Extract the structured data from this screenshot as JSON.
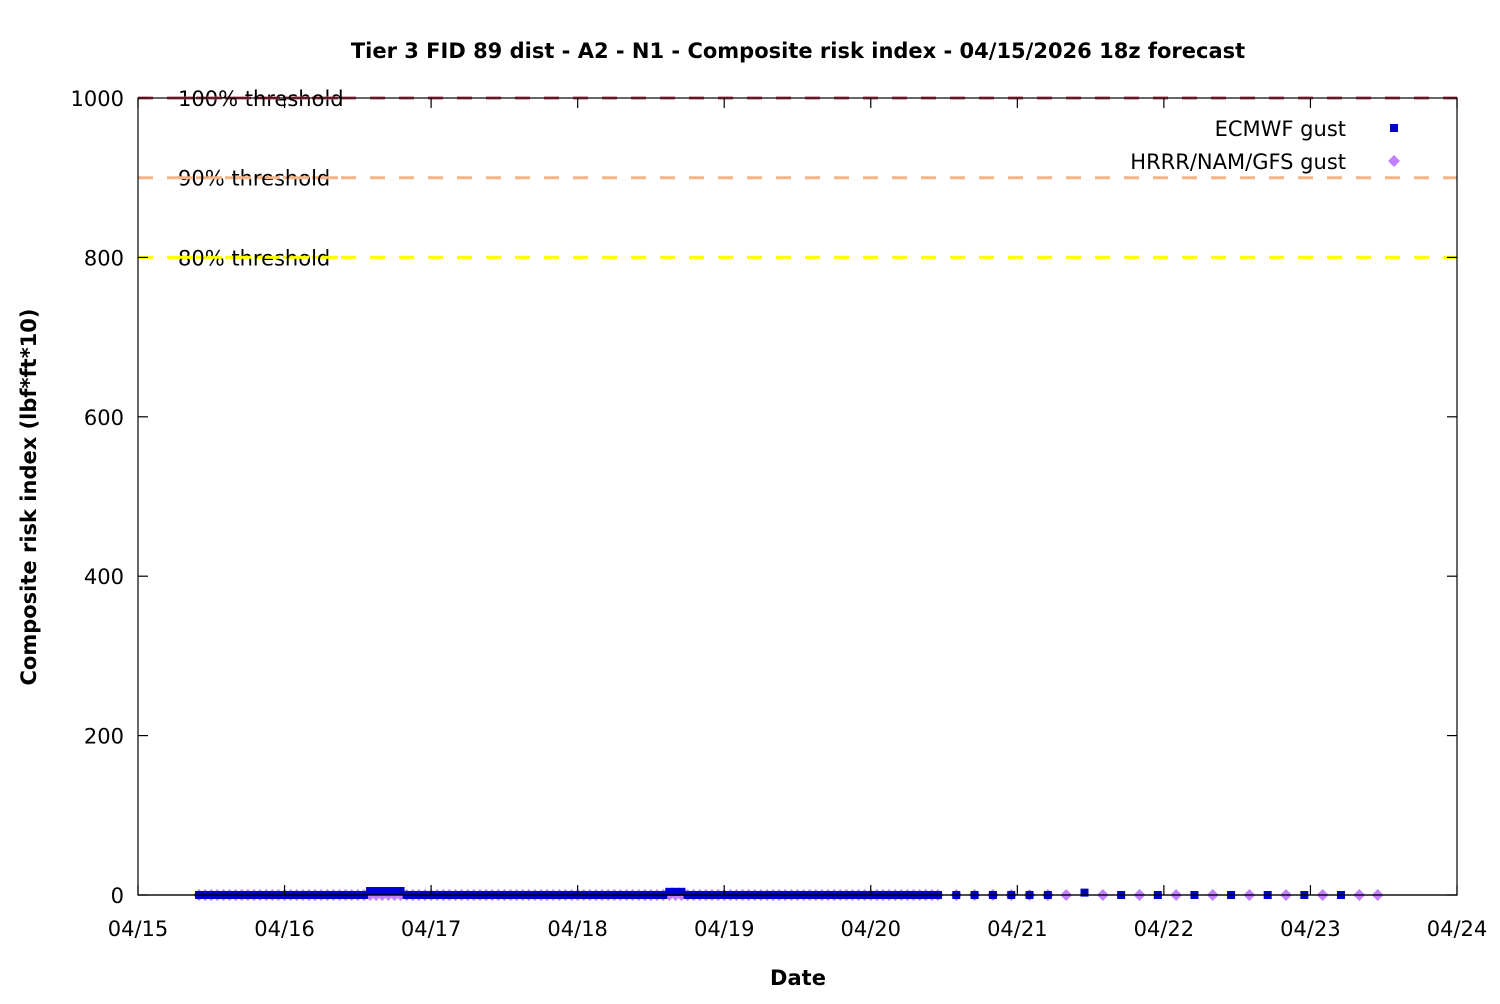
{
  "chart_data": {
    "type": "scatter",
    "title": "Tier 3 FID 89 dist - A2 - N1 - Composite risk index - 04/15/2026 18z forecast",
    "xlabel": "Date",
    "ylabel": "Composite risk index (lbf*ft*10)",
    "x_ticks": [
      "04/15",
      "04/16",
      "04/17",
      "04/18",
      "04/19",
      "04/20",
      "04/21",
      "04/22",
      "04/23",
      "04/24"
    ],
    "xlim": [
      "04/15 00z",
      "04/24 00z"
    ],
    "y_ticks": [
      0,
      200,
      400,
      600,
      800,
      1000
    ],
    "ylim": [
      0,
      1000
    ],
    "grid": false,
    "legend_placement": "top-right",
    "thresholds": [
      {
        "label": "100% threshold",
        "value": 1000,
        "color": "#c8506a"
      },
      {
        "label": "90% threshold",
        "value": 900,
        "color": "#f4b487"
      },
      {
        "label": "80% threshold",
        "value": 800,
        "color": "#ffff00"
      }
    ],
    "series": [
      {
        "name": "ECMWF gust",
        "marker": "square",
        "color": "#0000cc",
        "x": [
          "04/15 10z",
          "04/15 11z",
          "04/15 12z",
          "04/15 13z",
          "04/15 14z",
          "04/15 15z",
          "04/15 16z",
          "04/15 17z",
          "04/15 18z",
          "04/15 19z",
          "04/15 20z",
          "04/15 21z",
          "04/15 22z",
          "04/15 23z",
          "04/16 00z",
          "04/16 01z",
          "04/16 02z",
          "04/16 03z",
          "04/16 04z",
          "04/16 05z",
          "04/16 06z",
          "04/16 07z",
          "04/16 08z",
          "04/16 09z",
          "04/16 10z",
          "04/16 11z",
          "04/16 12z",
          "04/16 13z",
          "04/16 14z",
          "04/16 15z",
          "04/16 16z",
          "04/16 17z",
          "04/16 18z",
          "04/16 19z",
          "04/16 20z",
          "04/16 21z",
          "04/16 22z",
          "04/16 23z",
          "04/17 00z",
          "04/17 01z",
          "04/17 02z",
          "04/17 03z",
          "04/17 04z",
          "04/17 05z",
          "04/17 06z",
          "04/17 07z",
          "04/17 08z",
          "04/17 09z",
          "04/17 10z",
          "04/17 11z",
          "04/17 12z",
          "04/17 13z",
          "04/17 14z",
          "04/17 15z",
          "04/17 16z",
          "04/17 17z",
          "04/17 18z",
          "04/17 19z",
          "04/17 20z",
          "04/17 21z",
          "04/17 22z",
          "04/17 23z",
          "04/18 00z",
          "04/18 01z",
          "04/18 02z",
          "04/18 03z",
          "04/18 04z",
          "04/18 05z",
          "04/18 06z",
          "04/18 07z",
          "04/18 08z",
          "04/18 09z",
          "04/18 10z",
          "04/18 11z",
          "04/18 12z",
          "04/18 13z",
          "04/18 14z",
          "04/18 15z",
          "04/18 16z",
          "04/18 17z",
          "04/18 18z",
          "04/18 19z",
          "04/18 20z",
          "04/18 21z",
          "04/18 22z",
          "04/18 23z",
          "04/19 00z",
          "04/19 01z",
          "04/19 02z",
          "04/19 03z",
          "04/19 04z",
          "04/19 05z",
          "04/19 06z",
          "04/19 07z",
          "04/19 08z",
          "04/19 09z",
          "04/19 10z",
          "04/19 11z",
          "04/19 12z",
          "04/19 13z",
          "04/19 14z",
          "04/19 15z",
          "04/19 16z",
          "04/19 17z",
          "04/19 18z",
          "04/19 19z",
          "04/19 20z",
          "04/19 21z",
          "04/19 22z",
          "04/19 23z",
          "04/20 00z",
          "04/20 01z",
          "04/20 02z",
          "04/20 03z",
          "04/20 04z",
          "04/20 05z",
          "04/20 06z",
          "04/20 07z",
          "04/20 08z",
          "04/20 09z",
          "04/20 10z",
          "04/20 11z",
          "04/20 14z",
          "04/20 17z",
          "04/20 20z",
          "04/20 23z",
          "04/21 02z",
          "04/21 05z",
          "04/21 11z",
          "04/21 17z",
          "04/21 23z",
          "04/22 05z",
          "04/22 11z",
          "04/22 17z",
          "04/22 23z",
          "04/23 05z"
        ],
        "y": [
          0,
          0,
          0,
          0,
          0,
          0,
          0,
          0,
          0,
          0,
          0,
          0,
          0,
          0,
          0,
          0,
          0,
          0,
          0,
          0,
          0,
          0,
          0,
          0,
          0,
          0,
          0,
          0,
          5,
          5,
          5,
          5,
          5,
          5,
          0,
          0,
          0,
          0,
          0,
          0,
          0,
          0,
          0,
          0,
          0,
          0,
          0,
          0,
          0,
          0,
          0,
          0,
          0,
          0,
          0,
          0,
          0,
          0,
          0,
          0,
          0,
          0,
          0,
          0,
          0,
          0,
          0,
          0,
          0,
          0,
          0,
          0,
          0,
          0,
          0,
          0,
          0,
          4,
          4,
          4,
          0,
          0,
          0,
          0,
          0,
          0,
          0,
          0,
          0,
          0,
          0,
          0,
          0,
          0,
          0,
          0,
          0,
          0,
          0,
          0,
          0,
          0,
          0,
          0,
          0,
          0,
          0,
          0,
          0,
          0,
          0,
          0,
          0,
          0,
          0,
          0,
          0,
          0,
          0,
          0,
          0,
          0,
          0,
          0,
          0,
          0,
          0,
          0,
          3,
          0,
          0,
          0,
          0,
          0,
          0,
          0
        ]
      },
      {
        "name": "HRRR/NAM/GFS gust",
        "marker": "diamond",
        "color": "#c080ff",
        "x": [
          "04/15 10z",
          "04/15 11z",
          "04/15 12z",
          "04/15 13z",
          "04/15 14z",
          "04/15 15z",
          "04/15 16z",
          "04/15 17z",
          "04/15 18z",
          "04/15 19z",
          "04/15 20z",
          "04/15 21z",
          "04/15 22z",
          "04/15 23z",
          "04/16 00z",
          "04/16 01z",
          "04/16 02z",
          "04/16 03z",
          "04/16 04z",
          "04/16 05z",
          "04/16 06z",
          "04/16 07z",
          "04/16 08z",
          "04/16 09z",
          "04/16 10z",
          "04/16 11z",
          "04/16 12z",
          "04/16 13z",
          "04/16 14z",
          "04/16 15z",
          "04/16 16z",
          "04/16 17z",
          "04/16 18z",
          "04/16 19z",
          "04/16 20z",
          "04/16 21z",
          "04/16 22z",
          "04/16 23z",
          "04/17 00z",
          "04/17 01z",
          "04/17 02z",
          "04/17 03z",
          "04/17 04z",
          "04/17 05z",
          "04/17 06z",
          "04/17 07z",
          "04/17 08z",
          "04/17 09z",
          "04/17 10z",
          "04/17 11z",
          "04/17 12z",
          "04/17 13z",
          "04/17 14z",
          "04/17 15z",
          "04/17 16z",
          "04/17 17z",
          "04/17 18z",
          "04/17 19z",
          "04/17 20z",
          "04/17 21z",
          "04/17 22z",
          "04/17 23z",
          "04/18 00z",
          "04/18 01z",
          "04/18 02z",
          "04/18 03z",
          "04/18 04z",
          "04/18 05z",
          "04/18 06z",
          "04/18 07z",
          "04/18 08z",
          "04/18 09z",
          "04/18 10z",
          "04/18 11z",
          "04/18 12z",
          "04/18 13z",
          "04/18 14z",
          "04/18 15z",
          "04/18 16z",
          "04/18 17z",
          "04/18 18z",
          "04/18 19z",
          "04/18 20z",
          "04/18 21z",
          "04/18 22z",
          "04/18 23z",
          "04/19 00z",
          "04/19 01z",
          "04/19 02z",
          "04/19 03z",
          "04/19 04z",
          "04/19 05z",
          "04/19 06z",
          "04/19 07z",
          "04/19 08z",
          "04/19 09z",
          "04/19 10z",
          "04/19 11z",
          "04/19 12z",
          "04/19 13z",
          "04/19 14z",
          "04/19 15z",
          "04/19 16z",
          "04/19 17z",
          "04/19 18z",
          "04/19 19z",
          "04/19 20z",
          "04/19 21z",
          "04/19 22z",
          "04/19 23z",
          "04/20 00z",
          "04/20 01z",
          "04/20 02z",
          "04/20 03z",
          "04/20 04z",
          "04/20 05z",
          "04/20 06z",
          "04/20 07z",
          "04/20 08z",
          "04/20 09z",
          "04/20 10z",
          "04/20 11z",
          "04/20 14z",
          "04/20 17z",
          "04/20 20z",
          "04/20 23z",
          "04/21 02z",
          "04/21 05z",
          "04/21 08z",
          "04/21 14z",
          "04/21 20z",
          "04/22 02z",
          "04/22 08z",
          "04/22 14z",
          "04/22 20z",
          "04/23 02z",
          "04/23 08z",
          "04/23 11z"
        ],
        "y": [
          0,
          0,
          0,
          0,
          0,
          0,
          0,
          0,
          0,
          0,
          0,
          0,
          0,
          0,
          0,
          0,
          0,
          0,
          0,
          0,
          0,
          0,
          0,
          0,
          0,
          0,
          0,
          0,
          0,
          0,
          0,
          0,
          0,
          0,
          0,
          0,
          0,
          0,
          0,
          0,
          0,
          0,
          0,
          0,
          0,
          0,
          0,
          0,
          0,
          0,
          0,
          0,
          0,
          0,
          0,
          0,
          0,
          0,
          0,
          0,
          0,
          0,
          0,
          0,
          0,
          0,
          0,
          0,
          0,
          0,
          0,
          0,
          0,
          0,
          0,
          0,
          0,
          0,
          0,
          0,
          0,
          0,
          0,
          0,
          0,
          0,
          0,
          0,
          0,
          0,
          0,
          0,
          0,
          0,
          0,
          0,
          0,
          0,
          0,
          0,
          0,
          0,
          0,
          0,
          0,
          0,
          0,
          0,
          0,
          0,
          0,
          0,
          0,
          0,
          0,
          0,
          0,
          0,
          0,
          0,
          0,
          0,
          0,
          0,
          0,
          0,
          0,
          0,
          0,
          0,
          0,
          0,
          0,
          0,
          0,
          0,
          0,
          0
        ]
      }
    ]
  }
}
